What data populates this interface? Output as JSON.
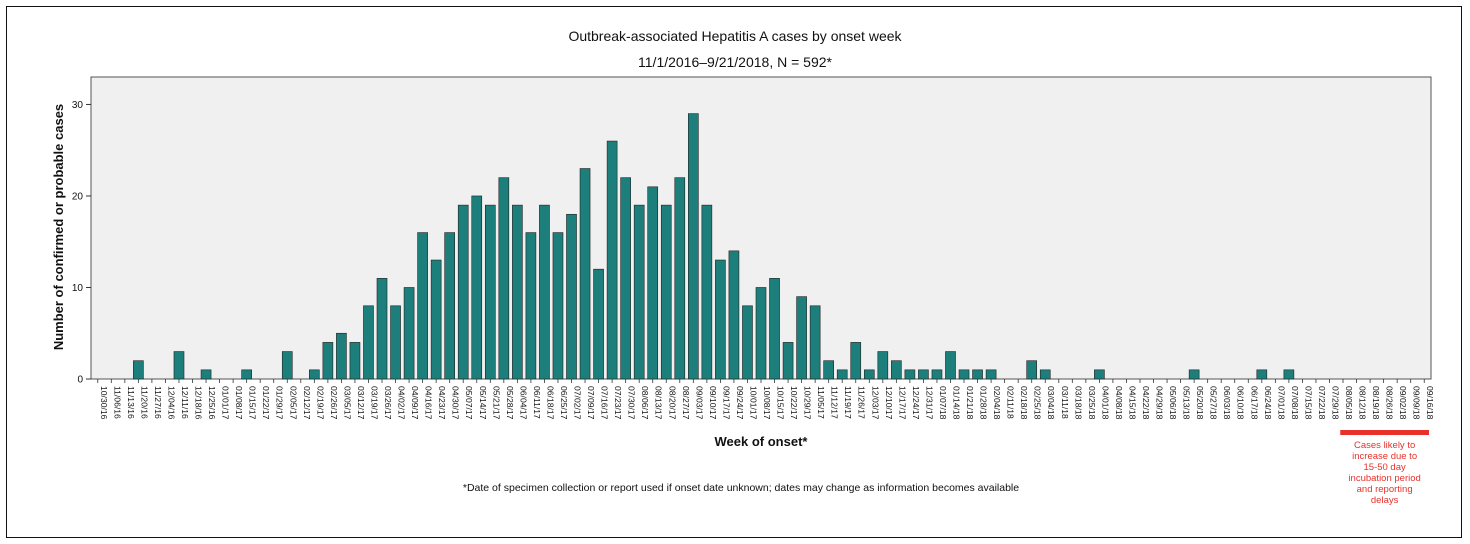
{
  "chart_data": {
    "type": "bar",
    "title": "Outbreak-associated Hepatitis A cases by onset week",
    "subtitle": "11/1/2016–9/21/2018, N = 592*",
    "xlabel": "Week of onset*",
    "ylabel": "Number of confirmed or probable cases",
    "ylim": [
      0,
      33
    ],
    "yticks": [
      0,
      10,
      20,
      30
    ],
    "grid": false,
    "bar_color": "#1d7f7b",
    "footnote": "*Date of specimen collection or report used if onset date unknown; dates may change as information becomes available",
    "annotation": "Cases likely to increase due to 15-50 day incubation period and reporting delays",
    "annotation_color": "#e8312b",
    "annotation_range": [
      "08/05/18",
      "09/16/18"
    ],
    "categories": [
      "10/30/16",
      "11/06/16",
      "11/13/16",
      "11/20/16",
      "11/27/16",
      "12/04/16",
      "12/11/16",
      "12/18/16",
      "12/25/16",
      "01/01/17",
      "01/08/17",
      "01/15/17",
      "01/22/17",
      "01/29/17",
      "02/05/17",
      "02/12/17",
      "02/19/17",
      "02/26/17",
      "03/05/17",
      "03/12/17",
      "03/19/17",
      "03/26/17",
      "04/02/17",
      "04/09/17",
      "04/16/17",
      "04/23/17",
      "04/30/17",
      "05/07/17",
      "05/14/17",
      "05/21/17",
      "05/28/17",
      "06/04/17",
      "06/11/17",
      "06/18/17",
      "06/25/17",
      "07/02/17",
      "07/09/17",
      "07/16/17",
      "07/23/17",
      "07/30/17",
      "08/06/17",
      "08/13/17",
      "08/20/17",
      "08/27/17",
      "09/03/17",
      "09/10/17",
      "09/17/17",
      "09/24/17",
      "10/01/17",
      "10/08/17",
      "10/15/17",
      "10/22/17",
      "10/29/17",
      "11/05/17",
      "11/12/17",
      "11/19/17",
      "11/26/17",
      "12/03/17",
      "12/10/17",
      "12/17/17",
      "12/24/17",
      "12/31/17",
      "01/07/18",
      "01/14/18",
      "01/21/18",
      "01/28/18",
      "02/04/18",
      "02/11/18",
      "02/18/18",
      "02/25/18",
      "03/04/18",
      "03/11/18",
      "03/18/18",
      "03/25/18",
      "04/01/18",
      "04/08/18",
      "04/15/18",
      "04/22/18",
      "04/29/18",
      "05/06/18",
      "05/13/18",
      "05/20/18",
      "05/27/18",
      "06/03/18",
      "06/10/18",
      "06/17/18",
      "06/24/18",
      "07/01/18",
      "07/08/18",
      "07/15/18",
      "07/22/18",
      "07/29/18",
      "08/05/18",
      "08/12/18",
      "08/19/18",
      "08/26/18",
      "09/02/18",
      "09/09/18",
      "09/16/18"
    ],
    "values": [
      0,
      0,
      0,
      2,
      0,
      0,
      3,
      0,
      1,
      0,
      0,
      1,
      0,
      0,
      3,
      0,
      1,
      4,
      5,
      4,
      8,
      11,
      8,
      10,
      16,
      13,
      16,
      19,
      20,
      19,
      22,
      19,
      16,
      19,
      16,
      18,
      23,
      12,
      26,
      22,
      19,
      21,
      19,
      22,
      29,
      19,
      13,
      14,
      8,
      10,
      11,
      4,
      9,
      8,
      2,
      1,
      4,
      1,
      3,
      2,
      1,
      1,
      1,
      3,
      1,
      1,
      1,
      0,
      0,
      2,
      1,
      0,
      0,
      0,
      1,
      0,
      0,
      0,
      0,
      0,
      0,
      1,
      0,
      0,
      0,
      0,
      1,
      0,
      1,
      0,
      0,
      0,
      0,
      0,
      0,
      0,
      0,
      0,
      0
    ]
  }
}
